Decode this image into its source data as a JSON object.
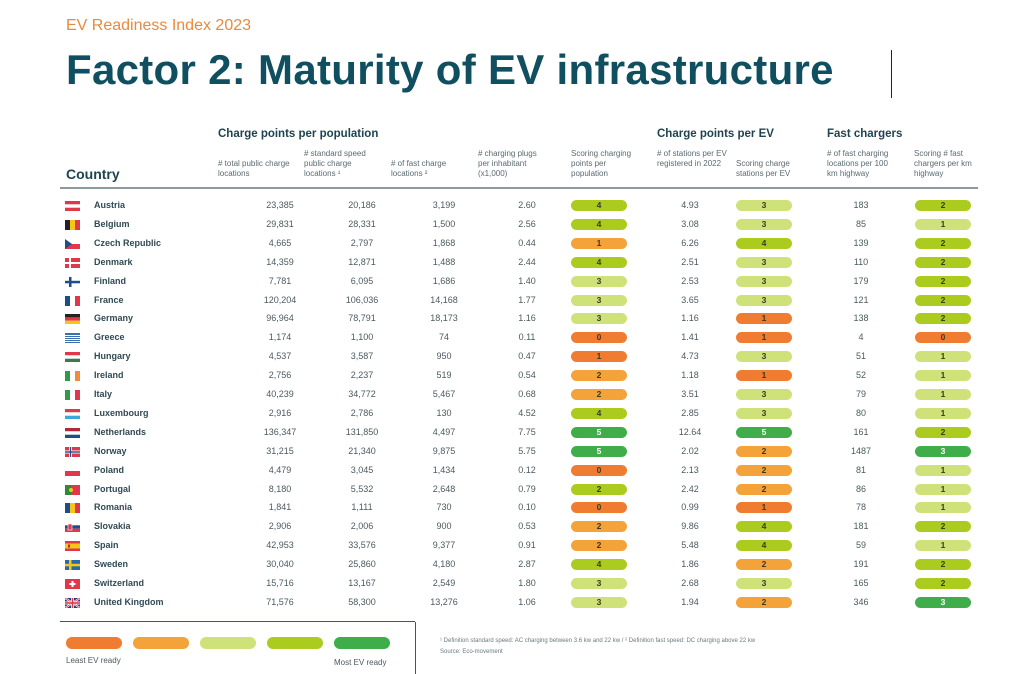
{
  "header": {
    "supertitle": "EV Readiness Index 2023",
    "title": "Factor 2: Maturity of EV infrastructure"
  },
  "columns": {
    "country": "Country",
    "groups": {
      "population": "Charge points per population",
      "per_ev": "Charge points per EV",
      "fast": "Fast chargers"
    },
    "c1": "# total public charge locations",
    "c2": "# standard speed public charge locations ¹",
    "c3": "# of fast charge locations ²",
    "c4": "# charging plugs per inhabitant (x1,000)",
    "c5": "Scoring charging points per population",
    "c6": "# of stations per EV registered in 2022",
    "c7": "Scoring charge stations per EV",
    "c8": "# of fast charging locations per 100 km highway",
    "c9": "Scoring # fast chargers per km highway"
  },
  "rows": [
    {
      "country": "Austria",
      "flag": "austria-flag",
      "total": "23,385",
      "standard": "20,186",
      "fast": "3,199",
      "plugs": "2.60",
      "score_pop": "4",
      "stations_ev": "4.93",
      "score_ev": "3",
      "fast_100km": "183",
      "score_fast": "2"
    },
    {
      "country": "Belgium",
      "flag": "belgium-flag",
      "total": "29,831",
      "standard": "28,331",
      "fast": "1,500",
      "plugs": "2.56",
      "score_pop": "4",
      "stations_ev": "3.08",
      "score_ev": "3",
      "fast_100km": "85",
      "score_fast": "1"
    },
    {
      "country": "Czech Republic",
      "flag": "czech-flag",
      "total": "4,665",
      "standard": "2,797",
      "fast": "1,868",
      "plugs": "0.44",
      "score_pop": "1",
      "stations_ev": "6.26",
      "score_ev": "4",
      "fast_100km": "139",
      "score_fast": "2"
    },
    {
      "country": "Denmark",
      "flag": "denmark-flag",
      "total": "14,359",
      "standard": "12,871",
      "fast": "1,488",
      "plugs": "2.44",
      "score_pop": "4",
      "stations_ev": "2.51",
      "score_ev": "3",
      "fast_100km": "110",
      "score_fast": "2"
    },
    {
      "country": "Finland",
      "flag": "finland-flag",
      "total": "7,781",
      "standard": "6,095",
      "fast": "1,686",
      "plugs": "1.40",
      "score_pop": "3",
      "stations_ev": "2.53",
      "score_ev": "3",
      "fast_100km": "179",
      "score_fast": "2"
    },
    {
      "country": "France",
      "flag": "france-flag",
      "total": "120,204",
      "standard": "106,036",
      "fast": "14,168",
      "plugs": "1.77",
      "score_pop": "3",
      "stations_ev": "3.65",
      "score_ev": "3",
      "fast_100km": "121",
      "score_fast": "2"
    },
    {
      "country": "Germany",
      "flag": "germany-flag",
      "total": "96,964",
      "standard": "78,791",
      "fast": "18,173",
      "plugs": "1.16",
      "score_pop": "3",
      "stations_ev": "1.16",
      "score_ev": "1",
      "fast_100km": "138",
      "score_fast": "2"
    },
    {
      "country": "Greece",
      "flag": "greece-flag",
      "total": "1,174",
      "standard": "1,100",
      "fast": "74",
      "plugs": "0.11",
      "score_pop": "0",
      "stations_ev": "1.41",
      "score_ev": "1",
      "fast_100km": "4",
      "score_fast": "0"
    },
    {
      "country": "Hungary",
      "flag": "hungary-flag",
      "total": "4,537",
      "standard": "3,587",
      "fast": "950",
      "plugs": "0.47",
      "score_pop": "1",
      "stations_ev": "4.73",
      "score_ev": "3",
      "fast_100km": "51",
      "score_fast": "1"
    },
    {
      "country": "Ireland",
      "flag": "ireland-flag",
      "total": "2,756",
      "standard": "2,237",
      "fast": "519",
      "plugs": "0.54",
      "score_pop": "2",
      "stations_ev": "1.18",
      "score_ev": "1",
      "fast_100km": "52",
      "score_fast": "1"
    },
    {
      "country": "Italy",
      "flag": "italy-flag",
      "total": "40,239",
      "standard": "34,772",
      "fast": "5,467",
      "plugs": "0.68",
      "score_pop": "2",
      "stations_ev": "3.51",
      "score_ev": "3",
      "fast_100km": "79",
      "score_fast": "1"
    },
    {
      "country": "Luxembourg",
      "flag": "luxembourg-flag",
      "total": "2,916",
      "standard": "2,786",
      "fast": "130",
      "plugs": "4.52",
      "score_pop": "4",
      "stations_ev": "2.85",
      "score_ev": "3",
      "fast_100km": "80",
      "score_fast": "1"
    },
    {
      "country": "Netherlands",
      "flag": "netherlands-flag",
      "total": "136,347",
      "standard": "131,850",
      "fast": "4,497",
      "plugs": "7.75",
      "score_pop": "5",
      "stations_ev": "12.64",
      "score_ev": "5",
      "fast_100km": "161",
      "score_fast": "2"
    },
    {
      "country": "Norway",
      "flag": "norway-flag",
      "total": "31,215",
      "standard": "21,340",
      "fast": "9,875",
      "plugs": "5.75",
      "score_pop": "5",
      "stations_ev": "2.02",
      "score_ev": "2",
      "fast_100km": "1487",
      "score_fast": "3"
    },
    {
      "country": "Poland",
      "flag": "poland-flag",
      "total": "4,479",
      "standard": "3,045",
      "fast": "1,434",
      "plugs": "0.12",
      "score_pop": "0",
      "stations_ev": "2.13",
      "score_ev": "2",
      "fast_100km": "81",
      "score_fast": "1"
    },
    {
      "country": "Portugal",
      "flag": "portugal-flag",
      "total": "8,180",
      "standard": "5,532",
      "fast": "2,648",
      "plugs": "0.79",
      "score_pop": "2",
      "stations_ev": "2.42",
      "score_ev": "2",
      "fast_100km": "86",
      "score_fast": "1"
    },
    {
      "country": "Romania",
      "flag": "romania-flag",
      "total": "1,841",
      "standard": "1,111",
      "fast": "730",
      "plugs": "0.10",
      "score_pop": "0",
      "stations_ev": "0.99",
      "score_ev": "1",
      "fast_100km": "78",
      "score_fast": "1"
    },
    {
      "country": "Slovakia",
      "flag": "slovakia-flag",
      "total": "2,906",
      "standard": "2,006",
      "fast": "900",
      "plugs": "0.53",
      "score_pop": "2",
      "stations_ev": "9.86",
      "score_ev": "4",
      "fast_100km": "181",
      "score_fast": "2"
    },
    {
      "country": "Spain",
      "flag": "spain-flag",
      "total": "42,953",
      "standard": "33,576",
      "fast": "9,377",
      "plugs": "0.91",
      "score_pop": "2",
      "stations_ev": "5.48",
      "score_ev": "4",
      "fast_100km": "59",
      "score_fast": "1"
    },
    {
      "country": "Sweden",
      "flag": "sweden-flag",
      "total": "30,040",
      "standard": "25,860",
      "fast": "4,180",
      "plugs": "2.87",
      "score_pop": "4",
      "stations_ev": "1.86",
      "score_ev": "2",
      "fast_100km": "191",
      "score_fast": "2"
    },
    {
      "country": "Switzerland",
      "flag": "switzerland-flag",
      "total": "15,716",
      "standard": "13,167",
      "fast": "2,549",
      "plugs": "1.80",
      "score_pop": "3",
      "stations_ev": "2.68",
      "score_ev": "3",
      "fast_100km": "165",
      "score_fast": "2"
    },
    {
      "country": "United Kingdom",
      "flag": "uk-flag",
      "total": "71,576",
      "standard": "58,300",
      "fast": "13,276",
      "plugs": "1.06",
      "score_pop": "3",
      "stations_ev": "1.94",
      "score_ev": "2",
      "fast_100km": "346",
      "score_fast": "3"
    }
  ],
  "legend": {
    "colors": [
      "#f07c32",
      "#f4a23a",
      "#cfe27a",
      "#abcc1e",
      "#3fae4a"
    ],
    "least": "Least EV ready",
    "most": "Most EV ready"
  },
  "footnotes": {
    "definitions": "¹ Definition standard speed: AC charging between 3.6 kw and 22 kw / ² Definition fast speed: DC charging above 22 kw",
    "source": "Source: Eco-movement"
  }
}
